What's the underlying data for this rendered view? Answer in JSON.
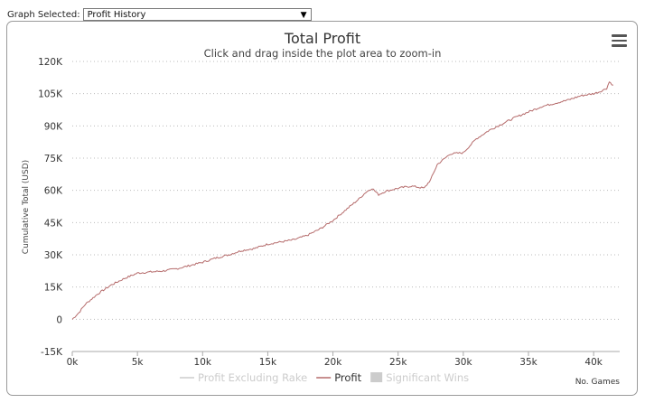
{
  "toolbar": {
    "graph_selected_label": "Graph Selected:",
    "graph_selected_value": "Profit History"
  },
  "icons": {
    "dropdown": "▼",
    "menu": "hamburger-menu-icon"
  },
  "chart_data": {
    "type": "line",
    "title": "Total Profit",
    "subtitle": "Click and drag inside the plot area to zoom-in",
    "ylabel": "Cumulative Total (USD)",
    "xlabel": "No. Games",
    "xlim": [
      0,
      42000
    ],
    "ylim": [
      -15000,
      120000
    ],
    "x_ticks": [
      0,
      5000,
      10000,
      15000,
      20000,
      25000,
      30000,
      35000,
      40000
    ],
    "x_tick_labels": [
      "0k",
      "5k",
      "10k",
      "15k",
      "20k",
      "25k",
      "30k",
      "35k",
      "40k"
    ],
    "y_ticks": [
      -15000,
      0,
      15000,
      30000,
      45000,
      60000,
      75000,
      90000,
      105000,
      120000
    ],
    "y_tick_labels": [
      "-15K",
      "0",
      "15K",
      "30K",
      "45K",
      "60K",
      "75K",
      "90K",
      "105K",
      "120K"
    ],
    "grid": "horizontal-dotted",
    "legend_position": "bottom",
    "legend": [
      {
        "name": "Profit Excluding Rake",
        "color": "#cccccc",
        "symbol": "line"
      },
      {
        "name": "Profit",
        "color": "#b56b6b",
        "symbol": "line"
      },
      {
        "name": "Significant Wins",
        "color": "#cccccc",
        "symbol": "box"
      }
    ],
    "series": [
      {
        "name": "Profit",
        "color": "#b56b6b",
        "x": [
          0,
          500,
          1000,
          2000,
          3000,
          4000,
          5000,
          6000,
          7000,
          8000,
          9000,
          10000,
          11000,
          12000,
          13000,
          14000,
          15000,
          16000,
          17000,
          18000,
          19000,
          20000,
          21000,
          22000,
          22500,
          23000,
          23500,
          24000,
          25000,
          26000,
          27000,
          27500,
          28000,
          29000,
          30000,
          31000,
          32000,
          33000,
          34000,
          35000,
          36000,
          37000,
          38000,
          39000,
          40000,
          40500,
          41000,
          41200,
          41500
        ],
        "y": [
          0,
          3000,
          7000,
          12000,
          16000,
          19000,
          21500,
          22000,
          22500,
          23500,
          25000,
          26500,
          28500,
          30000,
          32000,
          33000,
          35000,
          36000,
          37000,
          39000,
          42000,
          46000,
          51000,
          56000,
          59000,
          61000,
          58000,
          59500,
          61000,
          62000,
          61000,
          65000,
          72000,
          77000,
          77500,
          84000,
          88000,
          91000,
          94000,
          96500,
          99000,
          100500,
          102000,
          104000,
          105000,
          106000,
          107500,
          110500,
          109000
        ]
      }
    ]
  }
}
